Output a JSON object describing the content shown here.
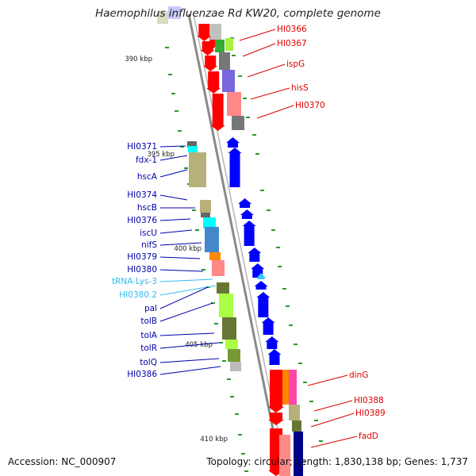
{
  "title": "Haemophilus influenzae Rd KW20, complete genome",
  "footer": {
    "accession": "Accession: NC_000907",
    "stats": "Topology: circular; Length: 1,830,138 bp; Genes: 1,737"
  },
  "scale_labels": [
    "390 kbp",
    "395 kbp",
    "400 kbp",
    "405 kbp",
    "410 kbp"
  ],
  "colors": {
    "backbone": "#8a8a8a",
    "forward_arrow": "#ff0000",
    "reverse_arrow": "#0000ff",
    "rna_arrow": "#33ccff",
    "label_forward": "#dd0000",
    "label_reverse": "#0000aa",
    "label_rna": "#33bbee",
    "tick": "#2a9a2a"
  },
  "right_labels": [
    "HI0366",
    "HI0367",
    "ispG",
    "hisS",
    "HI0370"
  ],
  "left_labels": [
    {
      "text": "HI0371",
      "kind": "gene"
    },
    {
      "text": "fdx-1",
      "kind": "gene"
    },
    {
      "text": "hscA",
      "kind": "gene"
    },
    {
      "text": "HI0374",
      "kind": "gene"
    },
    {
      "text": "hscB",
      "kind": "gene"
    },
    {
      "text": "HI0376",
      "kind": "gene"
    },
    {
      "text": "iscU",
      "kind": "gene"
    },
    {
      "text": "nifS",
      "kind": "gene"
    },
    {
      "text": "HI0379",
      "kind": "gene"
    },
    {
      "text": "HI0380",
      "kind": "gene"
    },
    {
      "text": "tRNA-Lys-3",
      "kind": "rna"
    },
    {
      "text": "HI0380.2",
      "kind": "rna"
    },
    {
      "text": "pal",
      "kind": "gene"
    },
    {
      "text": "tolB",
      "kind": "gene"
    },
    {
      "text": "tolA",
      "kind": "gene"
    },
    {
      "text": "tolR",
      "kind": "gene"
    },
    {
      "text": "tolQ",
      "kind": "gene"
    },
    {
      "text": "HI0386",
      "kind": "gene"
    }
  ],
  "right_labels_bottom": [
    "dinG",
    "HI0388",
    "HI0389",
    "fadD"
  ]
}
